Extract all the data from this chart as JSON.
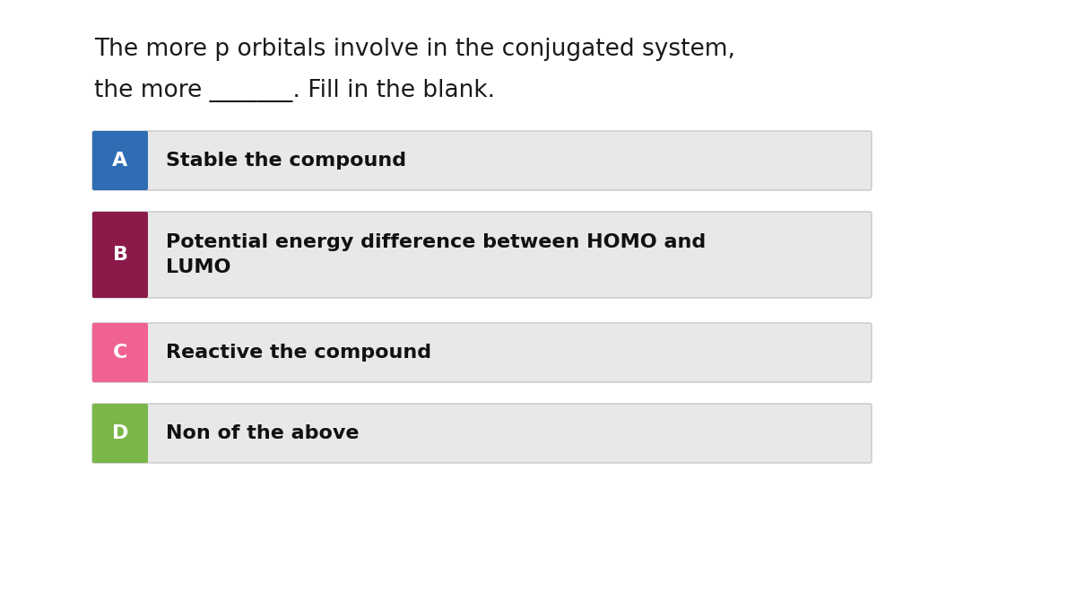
{
  "title_line1": "The more p orbitals involve in the conjugated system,",
  "title_line2": "the more _______. Fill in the blank.",
  "background_color": "#ffffff",
  "options": [
    {
      "letter": "A",
      "text": "Stable the compound",
      "letter_bg": "#2e6db4",
      "letter_color": "#ffffff",
      "box_bg": "#e8e8e8",
      "multiline": false
    },
    {
      "letter": "B",
      "text": "Potential energy difference between HOMO and\nLUMO",
      "letter_bg": "#8b1a4a",
      "letter_color": "#ffffff",
      "box_bg": "#e8e8e8",
      "multiline": true
    },
    {
      "letter": "C",
      "text": "Reactive the compound",
      "letter_bg": "#f06292",
      "letter_color": "#ffffff",
      "box_bg": "#e8e8e8",
      "multiline": false
    },
    {
      "letter": "D",
      "text": "Non of the above",
      "letter_bg": "#7ab648",
      "letter_color": "#ffffff",
      "box_bg": "#e8e8e8",
      "multiline": false
    }
  ],
  "title_fontsize": 19,
  "option_fontsize": 16,
  "letter_fontsize": 16
}
